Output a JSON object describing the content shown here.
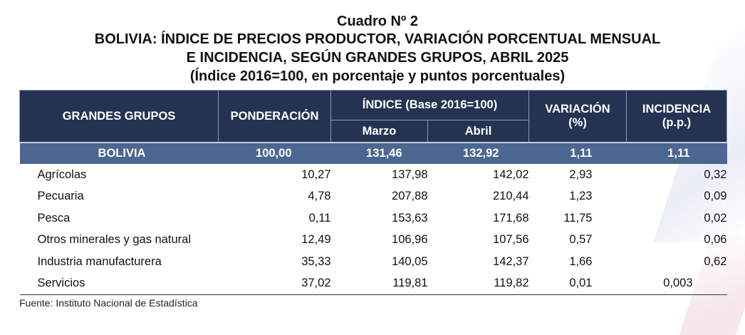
{
  "title": {
    "line1": "Cuadro Nº 2",
    "line2": "BOLIVIA: ÍNDICE DE PRECIOS PRODUCTOR, VARIACIÓN PORCENTUAL MENSUAL",
    "line3": "E INCIDENCIA, SEGÚN GRANDES GRUPOS, ABRIL 2025",
    "line4": "(Índice 2016=100, en porcentaje y puntos porcentuales)"
  },
  "table": {
    "headers": {
      "grupos": "GRANDES GRUPOS",
      "ponderacion": "PONDERACIÓN",
      "indice": "ÍNDICE (Base 2016=100)",
      "marzo": "Marzo",
      "abril": "Abril",
      "variacion": "VARIACIÓN",
      "variacion_unit": "(%)",
      "incidencia": "INCIDENCIA",
      "incidencia_unit": "(p.p.)"
    },
    "total": {
      "label": "BOLIVIA",
      "ponderacion": "100,00",
      "marzo": "131,46",
      "abril": "132,92",
      "variacion": "1,11",
      "incidencia": "1,11"
    },
    "rows": [
      {
        "label": "Agrícolas",
        "ponderacion": "10,27",
        "marzo": "137,98",
        "abril": "142,02",
        "variacion": "2,93",
        "incidencia": "0,32"
      },
      {
        "label": "Pecuaria",
        "ponderacion": "4,78",
        "marzo": "207,88",
        "abril": "210,44",
        "variacion": "1,23",
        "incidencia": "0,09"
      },
      {
        "label": "Pesca",
        "ponderacion": "0,11",
        "marzo": "153,63",
        "abril": "171,68",
        "variacion": "11,75",
        "incidencia": "0,02"
      },
      {
        "label": "Otros minerales y gas natural",
        "ponderacion": "12,49",
        "marzo": "106,96",
        "abril": "107,56",
        "variacion": "0,57",
        "incidencia": "0,06"
      },
      {
        "label": "Industria manufacturera",
        "ponderacion": "35,33",
        "marzo": "140,05",
        "abril": "142,37",
        "variacion": "1,66",
        "incidencia": "0,62"
      },
      {
        "label": "Servicios",
        "ponderacion": "37,02",
        "marzo": "119,81",
        "abril": "119,82",
        "variacion": "0,01",
        "incidencia": "0,003"
      }
    ]
  },
  "source": "Fuente: Instituto Nacional de Estadística",
  "colors": {
    "header_bg": "#243352",
    "total_row_bg": "#4d6591"
  }
}
